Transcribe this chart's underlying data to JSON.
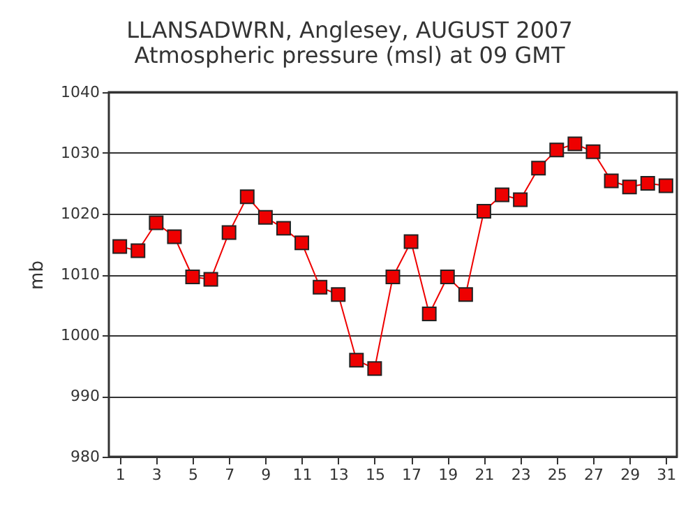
{
  "chart_data": {
    "type": "line",
    "title": "LLANSADWRN, Anglesey,  AUGUST 2007",
    "subtitle": "Atmospheric pressure  (msl) at 09 GMT",
    "ylabel": "mb",
    "x": [
      1,
      2,
      3,
      4,
      5,
      6,
      7,
      8,
      9,
      10,
      11,
      12,
      13,
      14,
      15,
      16,
      17,
      18,
      19,
      20,
      21,
      22,
      23,
      24,
      25,
      26,
      27,
      28,
      29,
      30,
      31
    ],
    "series": [
      {
        "color": "#ee0000",
        "values": [
          1014.6,
          1013.9,
          1018.5,
          1016.2,
          1009.6,
          1009.2,
          1016.9,
          1022.8,
          1019.4,
          1017.6,
          1015.2,
          1007.9,
          1006.7,
          995.9,
          994.5,
          1009.6,
          1015.4,
          1003.5,
          1009.6,
          1006.7,
          1020.4,
          1023.1,
          1022.3,
          1027.5,
          1030.5,
          1031.5,
          1030.2,
          1025.4,
          1024.4,
          1025.0,
          1024.6
        ]
      }
    ],
    "xlim": [
      0.4,
      31.6
    ],
    "xticks": [
      1,
      3,
      5,
      7,
      9,
      11,
      13,
      15,
      17,
      19,
      21,
      23,
      25,
      27,
      29,
      31
    ],
    "ylim": [
      980,
      1040
    ],
    "yticks": [
      980,
      990,
      1000,
      1010,
      1020,
      1030,
      1040
    ],
    "grid": "y",
    "marker": "square",
    "line_style": "solid",
    "legend": false
  }
}
